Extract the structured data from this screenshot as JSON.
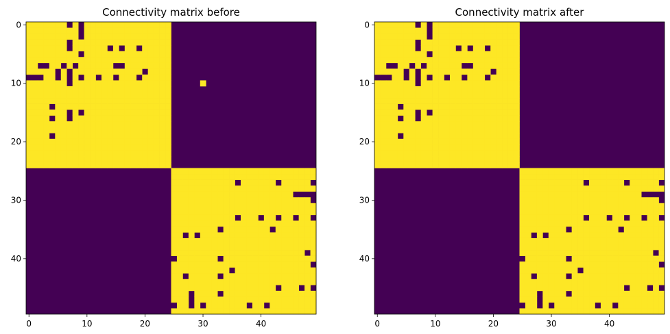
{
  "chart_data": [
    {
      "type": "heatmap",
      "title": "Connectivity matrix before",
      "xlabel": "",
      "ylabel": "",
      "size": 50,
      "xticks": [
        0,
        10,
        20,
        30,
        40
      ],
      "yticks": [
        0,
        10,
        20,
        30,
        40
      ],
      "colormap": "viridis",
      "colors": {
        "zero": "#440154",
        "one": "#fde725"
      },
      "blocks": [
        [
          0,
          24
        ],
        [
          25,
          49
        ]
      ],
      "zeros_within_blocks": [
        [
          0,
          7
        ],
        [
          0,
          9
        ],
        [
          1,
          9
        ],
        [
          2,
          9
        ],
        [
          3,
          7
        ],
        [
          4,
          7
        ],
        [
          5,
          9
        ],
        [
          4,
          14
        ],
        [
          4,
          16
        ],
        [
          4,
          19
        ],
        [
          7,
          2
        ],
        [
          7,
          3
        ],
        [
          7,
          6
        ],
        [
          7,
          8
        ],
        [
          7,
          15
        ],
        [
          7,
          16
        ],
        [
          8,
          5
        ],
        [
          8,
          7
        ],
        [
          8,
          20
        ],
        [
          9,
          0
        ],
        [
          9,
          1
        ],
        [
          9,
          2
        ],
        [
          9,
          5
        ],
        [
          9,
          7
        ],
        [
          9,
          9
        ],
        [
          9,
          12
        ],
        [
          9,
          15
        ],
        [
          9,
          19
        ],
        [
          10,
          7
        ],
        [
          14,
          4
        ],
        [
          15,
          7
        ],
        [
          15,
          9
        ],
        [
          16,
          4
        ],
        [
          16,
          7
        ],
        [
          19,
          4
        ],
        [
          27,
          36
        ],
        [
          27,
          43
        ],
        [
          27,
          49
        ],
        [
          29,
          46
        ],
        [
          29,
          47
        ],
        [
          29,
          48
        ],
        [
          29,
          49
        ],
        [
          30,
          49
        ],
        [
          33,
          36
        ],
        [
          33,
          40
        ],
        [
          33,
          43
        ],
        [
          33,
          46
        ],
        [
          33,
          49
        ],
        [
          35,
          33
        ],
        [
          35,
          42
        ],
        [
          36,
          27
        ],
        [
          36,
          29
        ],
        [
          39,
          48
        ],
        [
          40,
          25
        ],
        [
          40,
          33
        ],
        [
          41,
          49
        ],
        [
          42,
          35
        ],
        [
          43,
          27
        ],
        [
          43,
          33
        ],
        [
          45,
          43
        ],
        [
          45,
          47
        ],
        [
          45,
          49
        ],
        [
          46,
          28
        ],
        [
          46,
          33
        ],
        [
          47,
          28
        ],
        [
          48,
          25
        ],
        [
          48,
          28
        ],
        [
          48,
          30
        ],
        [
          48,
          38
        ],
        [
          48,
          41
        ]
      ],
      "ones_outside_blocks": [
        [
          10,
          30
        ]
      ]
    },
    {
      "type": "heatmap",
      "title": "Connectivity matrix after",
      "xlabel": "",
      "ylabel": "",
      "size": 50,
      "xticks": [
        0,
        10,
        20,
        30,
        40
      ],
      "yticks": [
        0,
        10,
        20,
        30,
        40
      ],
      "colormap": "viridis",
      "colors": {
        "zero": "#440154",
        "one": "#fde725"
      },
      "blocks": [
        [
          0,
          24
        ],
        [
          25,
          49
        ]
      ],
      "zeros_within_blocks": [
        [
          0,
          7
        ],
        [
          0,
          9
        ],
        [
          1,
          9
        ],
        [
          2,
          9
        ],
        [
          3,
          7
        ],
        [
          4,
          7
        ],
        [
          5,
          9
        ],
        [
          4,
          14
        ],
        [
          4,
          16
        ],
        [
          4,
          19
        ],
        [
          7,
          2
        ],
        [
          7,
          3
        ],
        [
          7,
          6
        ],
        [
          7,
          8
        ],
        [
          7,
          15
        ],
        [
          7,
          16
        ],
        [
          8,
          5
        ],
        [
          8,
          7
        ],
        [
          8,
          20
        ],
        [
          9,
          0
        ],
        [
          9,
          1
        ],
        [
          9,
          2
        ],
        [
          9,
          5
        ],
        [
          9,
          7
        ],
        [
          9,
          9
        ],
        [
          9,
          12
        ],
        [
          9,
          15
        ],
        [
          9,
          19
        ],
        [
          10,
          7
        ],
        [
          14,
          4
        ],
        [
          15,
          7
        ],
        [
          15,
          9
        ],
        [
          16,
          4
        ],
        [
          16,
          7
        ],
        [
          19,
          4
        ],
        [
          27,
          36
        ],
        [
          27,
          43
        ],
        [
          27,
          49
        ],
        [
          29,
          46
        ],
        [
          29,
          47
        ],
        [
          29,
          48
        ],
        [
          29,
          49
        ],
        [
          30,
          49
        ],
        [
          33,
          36
        ],
        [
          33,
          40
        ],
        [
          33,
          43
        ],
        [
          33,
          46
        ],
        [
          33,
          49
        ],
        [
          35,
          33
        ],
        [
          35,
          42
        ],
        [
          36,
          27
        ],
        [
          36,
          29
        ],
        [
          39,
          48
        ],
        [
          40,
          25
        ],
        [
          40,
          33
        ],
        [
          41,
          49
        ],
        [
          42,
          35
        ],
        [
          43,
          27
        ],
        [
          43,
          33
        ],
        [
          45,
          43
        ],
        [
          45,
          47
        ],
        [
          45,
          49
        ],
        [
          46,
          28
        ],
        [
          46,
          33
        ],
        [
          47,
          28
        ],
        [
          48,
          25
        ],
        [
          48,
          28
        ],
        [
          48,
          30
        ],
        [
          48,
          38
        ],
        [
          48,
          41
        ]
      ],
      "ones_outside_blocks": []
    }
  ]
}
